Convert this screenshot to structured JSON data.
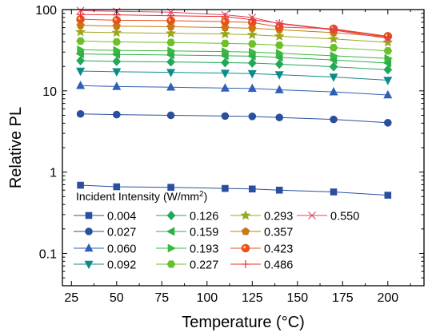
{
  "chart_data": {
    "type": "line",
    "xlabel": "Temperature (°C)",
    "ylabel": "Relative PL",
    "xlim": [
      20,
      220
    ],
    "ylim": [
      0.04,
      100
    ],
    "yscale": "log",
    "grid": false,
    "legend_placement": "bottom-left, inside plot",
    "legend_title": {
      "main": "Incident Intensity (W/mm",
      "sup": "2",
      "close": ")"
    },
    "x": [
      30,
      50,
      80,
      110,
      125,
      140,
      170,
      200
    ],
    "x_ticks": [
      "25",
      "50",
      "75",
      "100",
      "125",
      "150",
      "175",
      "200"
    ],
    "y_ticks": [
      "0.1",
      "1",
      "10",
      "100"
    ],
    "series": [
      {
        "name": "0.004",
        "color": "#2a4f9e",
        "marker": "square",
        "values": [
          0.69,
          0.66,
          0.65,
          0.63,
          0.62,
          0.6,
          0.57,
          0.52
        ]
      },
      {
        "name": "0.027",
        "color": "#2a4f9e",
        "marker": "circle",
        "values": [
          5.2,
          5.1,
          5.0,
          4.9,
          4.85,
          4.7,
          4.45,
          4.05
        ]
      },
      {
        "name": "0.060",
        "color": "#2f5fb6",
        "marker": "triangle-up",
        "values": [
          11.6,
          11.3,
          11.1,
          10.8,
          10.7,
          10.3,
          9.7,
          8.9
        ]
      },
      {
        "name": "0.092",
        "color": "#0f8a8a",
        "marker": "triangle-down",
        "values": [
          17.5,
          17.2,
          16.9,
          16.5,
          16.3,
          15.8,
          14.8,
          13.5
        ]
      },
      {
        "name": "0.126",
        "color": "#22a85a",
        "marker": "diamond",
        "values": [
          23.5,
          23.0,
          22.7,
          22.2,
          22.0,
          21.3,
          19.8,
          18.2
        ]
      },
      {
        "name": "0.159",
        "color": "#2db04a",
        "marker": "triangle-left",
        "values": [
          28.5,
          28.0,
          27.6,
          27.0,
          26.7,
          25.8,
          24.0,
          22.0
        ]
      },
      {
        "name": "0.193",
        "color": "#3cb83c",
        "marker": "triangle-right",
        "values": [
          32.0,
          31.5,
          31.0,
          30.4,
          30.0,
          29.0,
          27.0,
          25.0
        ]
      },
      {
        "name": "0.227",
        "color": "#6cc02a",
        "marker": "hexagon",
        "values": [
          41.0,
          40.0,
          39.3,
          38.4,
          37.8,
          36.5,
          34.0,
          31.0
        ]
      },
      {
        "name": "0.293",
        "color": "#9aa820",
        "marker": "star",
        "values": [
          53.0,
          52.0,
          51.0,
          50.0,
          49.0,
          47.0,
          43.5,
          39.5
        ]
      },
      {
        "name": "0.357",
        "color": "#c87a10",
        "marker": "pentagon",
        "values": [
          64.0,
          62.5,
          61.5,
          60.0,
          59.0,
          56.5,
          52.0,
          46.0
        ]
      },
      {
        "name": "0.423",
        "color": "#e8501c",
        "marker": "sun-circle",
        "values": [
          76.0,
          74.0,
          73.0,
          71.0,
          69.5,
          61.0,
          58.0,
          47.0
        ]
      },
      {
        "name": "0.486",
        "color": "#e83030",
        "marker": "plus",
        "values": [
          87.0,
          86.0,
          84.0,
          82.0,
          75.0,
          68.0,
          57.0,
          46.0
        ]
      },
      {
        "name": "0.550",
        "color": "#e04060",
        "marker": "x",
        "values": [
          97.0,
          95.0,
          93.0,
          86.0,
          80.0,
          67.0,
          56.0,
          44.0
        ]
      }
    ]
  }
}
